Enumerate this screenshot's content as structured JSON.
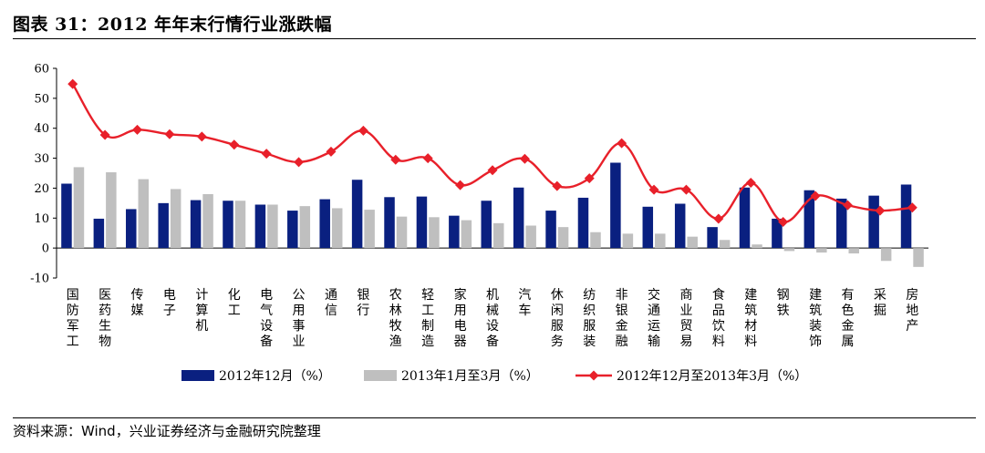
{
  "title": "图表 31：2012 年年末行情行业涨跌幅",
  "source": "资料来源：Wind，兴业证券经济与金融研究院整理",
  "colors": {
    "dec2012": "#0a2080",
    "q1_2013": "#bfbfbf",
    "line": "#e8202a"
  },
  "chart_data": {
    "type": "bar",
    "categories": [
      "国防军工",
      "医药生物",
      "传媒",
      "电子",
      "计算机",
      "化工",
      "电气设备",
      "公用事业",
      "通信",
      "银行",
      "农林牧渔",
      "轻工制造",
      "家用电器",
      "机械设备",
      "汽车",
      "休闲服务",
      "纺织服装",
      "非银金融",
      "交通运输",
      "商业贸易",
      "食品饮料",
      "建筑材料",
      "钢铁",
      "建筑装饰",
      "有色金属",
      "采掘",
      "房地产"
    ],
    "series": [
      {
        "name": "2012年12月（%）",
        "kind": "bar",
        "values": [
          21.5,
          9.8,
          13.0,
          15.0,
          16.0,
          15.8,
          14.5,
          12.5,
          16.3,
          22.8,
          17.0,
          17.2,
          10.8,
          15.8,
          20.2,
          12.5,
          16.8,
          28.5,
          13.8,
          14.8,
          7.0,
          20.2,
          9.8,
          19.3,
          16.5,
          17.5,
          21.2
        ]
      },
      {
        "name": "2013年1月至3月（%）",
        "kind": "bar",
        "values": [
          27.0,
          25.3,
          23.0,
          19.7,
          18.0,
          15.8,
          14.5,
          14.0,
          13.3,
          12.8,
          10.5,
          10.3,
          9.3,
          8.3,
          7.5,
          7.0,
          5.3,
          4.8,
          4.8,
          3.8,
          2.7,
          1.2,
          -1.0,
          -1.5,
          -1.8,
          -4.3,
          -6.3
        ]
      },
      {
        "name": "2012年12月至2013年3月（%）",
        "kind": "line",
        "values": [
          54.8,
          37.8,
          39.5,
          38.0,
          37.2,
          34.5,
          31.5,
          28.7,
          32.2,
          39.2,
          29.5,
          30.0,
          21.0,
          26.0,
          29.8,
          20.7,
          23.3,
          35.0,
          19.5,
          19.5,
          9.8,
          21.8,
          8.7,
          17.4,
          14.3,
          12.5,
          13.5
        ]
      }
    ],
    "ylim": [
      -10,
      60
    ],
    "yticks": [
      "60",
      "50",
      "40",
      "30",
      "20",
      "10",
      "0",
      "-10"
    ],
    "grid": false,
    "legend": "bottom"
  }
}
